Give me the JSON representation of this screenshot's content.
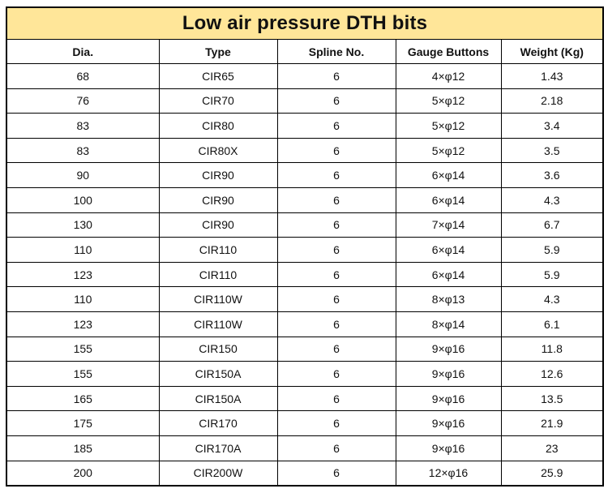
{
  "table": {
    "title": "Low air pressure DTH bits",
    "headers": [
      "Dia.",
      "Type",
      "Spline No.",
      "Gauge Buttons",
      "Weight (Kg)"
    ],
    "rows": [
      [
        "68",
        "CIR65",
        "6",
        "4×φ12",
        "1.43"
      ],
      [
        "76",
        "CIR70",
        "6",
        "5×φ12",
        "2.18"
      ],
      [
        "83",
        "CIR80",
        "6",
        "5×φ12",
        "3.4"
      ],
      [
        "83",
        "CIR80X",
        "6",
        "5×φ12",
        "3.5"
      ],
      [
        "90",
        "CIR90",
        "6",
        "6×φ14",
        "3.6"
      ],
      [
        "100",
        "CIR90",
        "6",
        "6×φ14",
        "4.3"
      ],
      [
        "130",
        "CIR90",
        "6",
        "7×φ14",
        "6.7"
      ],
      [
        "110",
        "CIR110",
        "6",
        "6×φ14",
        "5.9"
      ],
      [
        "123",
        "CIR110",
        "6",
        "6×φ14",
        "5.9"
      ],
      [
        "110",
        "CIR110W",
        "6",
        "8×φ13",
        "4.3"
      ],
      [
        "123",
        "CIR110W",
        "6",
        "8×φ14",
        "6.1"
      ],
      [
        "155",
        "CIR150",
        "6",
        "9×φ16",
        "11.8"
      ],
      [
        "155",
        "CIR150A",
        "6",
        "9×φ16",
        "12.6"
      ],
      [
        "165",
        "CIR150A",
        "6",
        "9×φ16",
        "13.5"
      ],
      [
        "175",
        "CIR170",
        "6",
        "9×φ16",
        "21.9"
      ],
      [
        "185",
        "CIR170A",
        "6",
        "9×φ16",
        "23"
      ],
      [
        "200",
        "CIR200W",
        "6",
        "12×φ16",
        "25.9"
      ]
    ],
    "title_bg": "#ffe699"
  }
}
